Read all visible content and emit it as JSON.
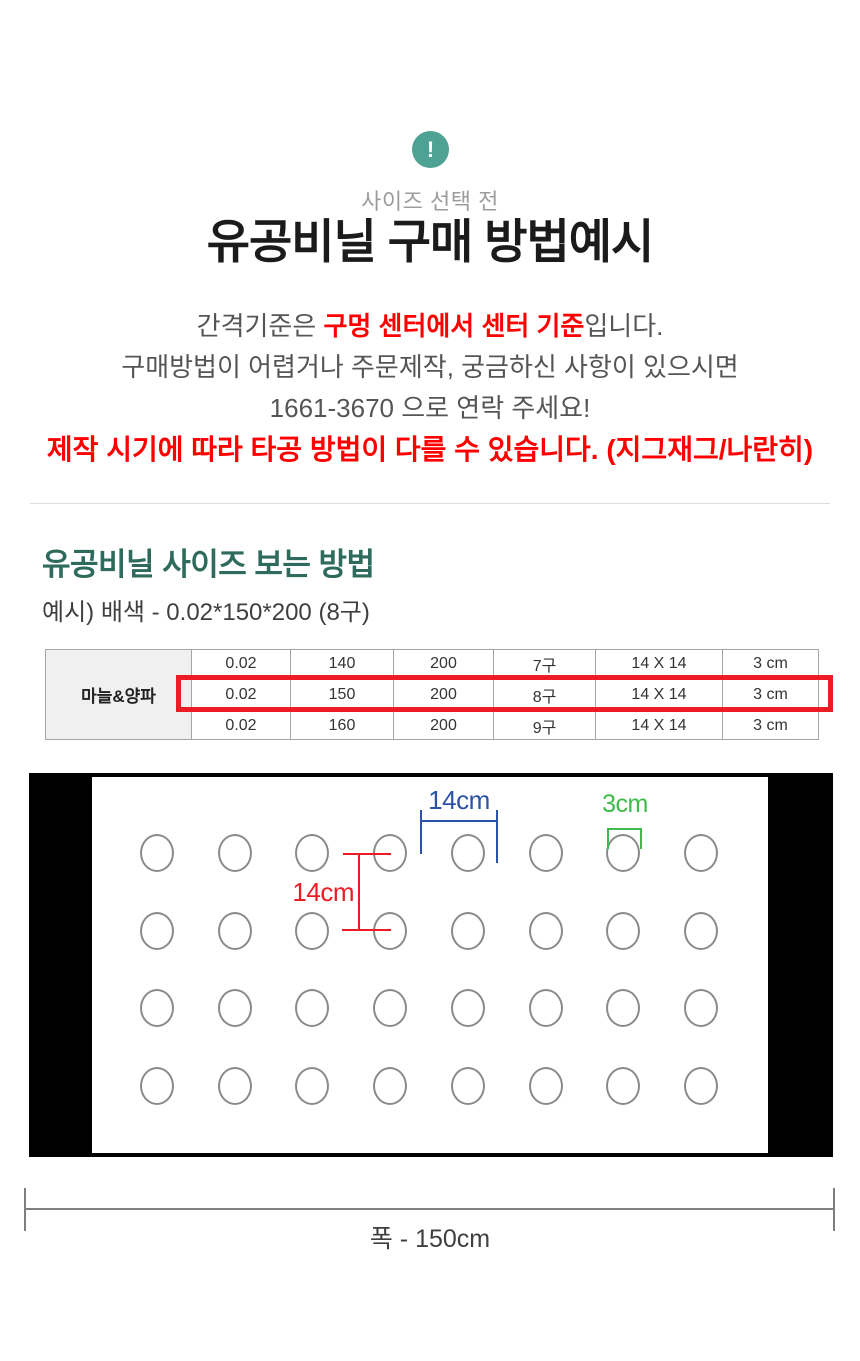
{
  "notice": {
    "badge_icon": "exclamation-icon",
    "badge_glyph": "!",
    "badge_color": "#4da293",
    "pre_title": "사이즈 선택 전",
    "title": "유공비닐 구매 방법예시",
    "line1_prefix": "간격기준은 ",
    "line1_highlight": "구멍 센터에서 센터 기준",
    "line1_suffix": "입니다.",
    "line2": "구매방법이 어렵거나 주문제작, 궁금하신 사항이 있으시면",
    "line3": "1661-3670 으로 연락 주세요!",
    "line4": "제작 시기에 따라 타공 방법이 다를 수 있습니다. (지그재그/나란히)",
    "phone_number": "1661-3670",
    "red_color": "#ff0000"
  },
  "size_guide": {
    "heading": "유공비닐 사이즈 보는 방법",
    "heading_color": "#2f6b5c",
    "example": "예시) 배색 - 0.02*150*200 (8구)"
  },
  "spec_table": {
    "row_header": "마늘&양파",
    "rows": [
      {
        "cells": [
          "0.02",
          "140",
          "200",
          "7구",
          "14 X 14",
          "3 cm"
        ],
        "highlighted": false
      },
      {
        "cells": [
          "0.02",
          "150",
          "200",
          "8구",
          "14 X 14",
          "3 cm"
        ],
        "highlighted": true
      },
      {
        "cells": [
          "0.02",
          "160",
          "200",
          "9구",
          "14 X 14",
          "3 cm"
        ],
        "highlighted": false
      }
    ],
    "highlight_color": "#ec1c24"
  },
  "diagram": {
    "grid": {
      "rows": 4,
      "cols": 8
    },
    "hole_shape": "circle-outline",
    "labels": {
      "horizontal_spacing": "14cm",
      "vertical_spacing": "14cm",
      "hole_diameter": "3cm",
      "sheet_width": "폭 - 150cm"
    },
    "colors": {
      "horizontal_spacing": "#2b52a6",
      "vertical_spacing": "#ed1c24",
      "hole_diameter": "#3dbb4a",
      "side_bars": "#000000"
    }
  }
}
